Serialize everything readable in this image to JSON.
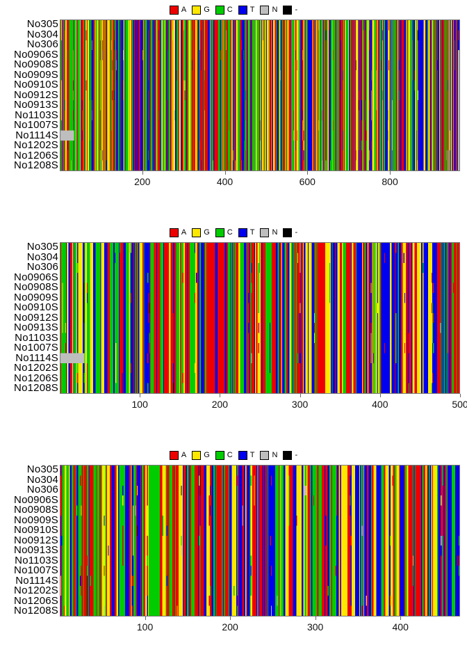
{
  "chart_data": {
    "type": "heatmap",
    "subtype": "dna-sequence-alignment",
    "title": "",
    "taxa": [
      "No305",
      "No304",
      "No306",
      "No0906S",
      "No0908S",
      "No0909S",
      "No0910S",
      "No0912S",
      "No0913S",
      "No1103S",
      "No1007S",
      "No1114S",
      "No1202S",
      "No1206S",
      "No1208S"
    ],
    "legend": {
      "items": [
        {
          "base": "A",
          "color": "#ee0000"
        },
        {
          "base": "G",
          "color": "#ffe800"
        },
        {
          "base": "C",
          "color": "#00cc00"
        },
        {
          "base": "T",
          "color": "#0000ee"
        },
        {
          "base": "N",
          "color": "#bebebe"
        },
        {
          "base": "-",
          "color": "#000000"
        }
      ]
    },
    "palette": {
      "A": "#ee0000",
      "G": "#ffe800",
      "C": "#00cc00",
      "T": "#0000ee",
      "N": "#bebebe",
      "-": "#000000"
    },
    "rows_per_panel": 15,
    "panels": [
      {
        "name": "panel-1",
        "length": 970,
        "ticks": [
          200,
          400,
          600,
          800
        ],
        "seed": 1042,
        "features": [
          {
            "row_start": 11,
            "row_end": 11,
            "pos": 0,
            "len": 33,
            "base": "N"
          },
          {
            "row_start": 3,
            "row_end": 14,
            "pos": 967,
            "len": 3,
            "base": "N"
          }
        ]
      },
      {
        "name": "panel-2",
        "length": 500,
        "ticks": [
          100,
          200,
          300,
          400,
          500
        ],
        "seed": 733,
        "features": [
          {
            "row_start": 11,
            "row_end": 11,
            "pos": 0,
            "len": 30,
            "base": "N"
          }
        ]
      },
      {
        "name": "panel-3",
        "length": 470,
        "ticks": [
          100,
          200,
          300,
          400
        ],
        "seed": 951,
        "features": [
          {
            "row_start": 2,
            "row_end": 2,
            "pos": 287,
            "len": 3,
            "base": "N"
          }
        ]
      }
    ],
    "generator": {
      "base_weights": {
        "A": 0.31,
        "C": 0.26,
        "T": 0.26,
        "G": 0.17
      },
      "run_prob": 0.42,
      "variation_prob": 0.085,
      "variation_n_prob": 0.08,
      "variation_gap_prob": 0.05
    },
    "axis_color": "#666666",
    "border_color": "#7a7a7a"
  }
}
